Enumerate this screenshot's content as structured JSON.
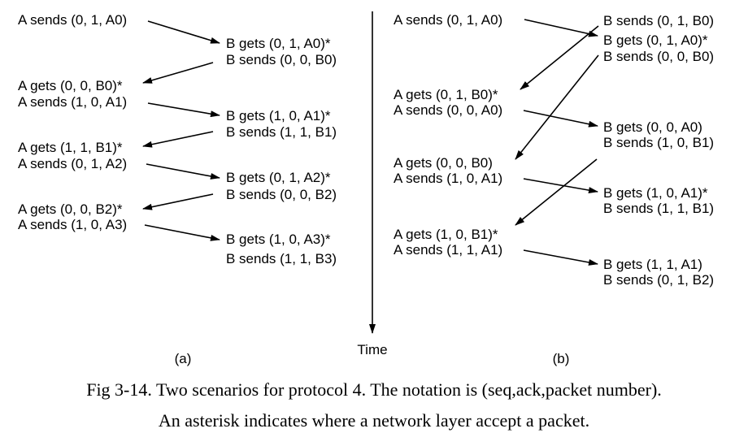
{
  "scenario_a": {
    "label": "(a)",
    "left_events": [
      "A sends (0, 1, A0)",
      "A gets (0, 0, B0)*",
      "A sends (1, 0, A1)",
      "A gets (1, 1, B1)*",
      "A sends (0, 1, A2)",
      "A gets (0, 0, B2)*",
      "A sends (1, 0, A3)"
    ],
    "right_events": [
      "B gets (0, 1, A0)*",
      "B sends (0, 0, B0)",
      "B gets (1, 0, A1)*",
      "B sends (1, 1, B1)",
      "B gets (0, 1, A2)*",
      "B sends (0, 0, B2)",
      "B gets (1, 0, A3)*",
      "B sends (1, 1, B3)"
    ]
  },
  "scenario_b": {
    "label": "(b)",
    "left_events": [
      "A sends (0, 1, A0)",
      "A gets (0, 1, B0)*",
      "A sends (0, 0, A0)",
      "A gets (0, 0, B0)",
      "A sends (1, 0, A1)",
      "A gets (1, 0, B1)*",
      "A sends (1, 1, A1)"
    ],
    "right_events": [
      "B sends (0, 1, B0)",
      "B gets (0, 1, A0)*",
      "B sends (0, 0, B0)",
      "B gets (0, 0, A0)",
      "B sends (1, 0, B1)",
      "B gets (1, 0, A1)*",
      "B sends (1, 1, B1)",
      "B gets (1, 1, A1)",
      "B sends (0, 1, B2)"
    ]
  },
  "time_label": "Time",
  "caption": {
    "line1": "Fig 3-14. Two scenarios for protocol 4. The notation is (seq,ack,packet number).",
    "line2": "An asterisk indicates where a network layer accept a packet."
  }
}
